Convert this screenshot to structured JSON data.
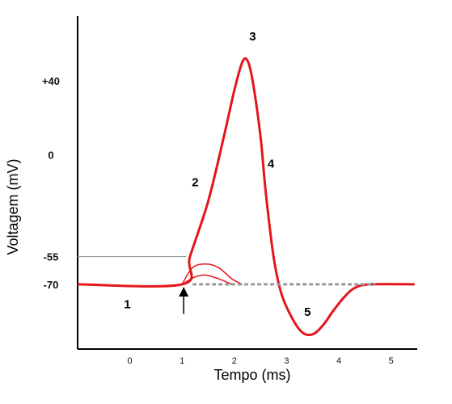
{
  "chart_data": {
    "type": "line",
    "title": "",
    "xlabel": "Tempo (ms)",
    "ylabel": "Voltagem (mV)",
    "x_ticks": [
      "0",
      "1",
      "2",
      "3",
      "4",
      "5"
    ],
    "y_ticks": [
      "+40",
      "0",
      "-55",
      "-70"
    ],
    "xlim": [
      -1,
      5.5
    ],
    "ylim": [
      -105,
      75
    ],
    "threshold_mV": -55,
    "resting_mV": -70,
    "series": [
      {
        "role": "action-potential",
        "color": "#e4161b",
        "points": [
          [
            -1,
            -70
          ],
          [
            1,
            -70
          ],
          [
            1.15,
            -55
          ],
          [
            1.5,
            -25
          ],
          [
            1.8,
            10
          ],
          [
            2.0,
            35
          ],
          [
            2.15,
            50
          ],
          [
            2.25,
            51
          ],
          [
            2.35,
            40
          ],
          [
            2.5,
            10
          ],
          [
            2.6,
            -20
          ],
          [
            2.75,
            -55
          ],
          [
            2.9,
            -75
          ],
          [
            3.1,
            -88
          ],
          [
            3.3,
            -96
          ],
          [
            3.5,
            -97
          ],
          [
            3.7,
            -92
          ],
          [
            3.9,
            -84
          ],
          [
            4.1,
            -77
          ],
          [
            4.3,
            -72
          ],
          [
            4.6,
            -70
          ],
          [
            5.45,
            -70
          ]
        ]
      },
      {
        "role": "subthreshold-response-1",
        "color": "#e4161b",
        "points": [
          [
            1,
            -70
          ],
          [
            1.2,
            -61
          ],
          [
            1.45,
            -59
          ],
          [
            1.7,
            -61
          ],
          [
            1.95,
            -67
          ],
          [
            2.15,
            -70
          ]
        ]
      },
      {
        "role": "subthreshold-response-2",
        "color": "#e4161b",
        "points": [
          [
            1,
            -70
          ],
          [
            1.25,
            -66
          ],
          [
            1.45,
            -65
          ],
          [
            1.7,
            -67
          ],
          [
            1.95,
            -70
          ]
        ]
      },
      {
        "role": "resting-level-dashed",
        "color": "#9a9a9a",
        "points": [
          [
            1.2,
            -70
          ],
          [
            4.7,
            -70
          ]
        ]
      }
    ],
    "phase_labels": [
      {
        "text": "1",
        "x": -0.05,
        "y": -83
      },
      {
        "text": "2",
        "x": 1.25,
        "y": -17
      },
      {
        "text": "3",
        "x": 2.35,
        "y": 62
      },
      {
        "text": "4",
        "x": 2.7,
        "y": -7
      },
      {
        "text": "5",
        "x": 3.4,
        "y": -87
      }
    ],
    "stimulus_arrow_x": 1.03,
    "grid": false,
    "legend": "none"
  }
}
